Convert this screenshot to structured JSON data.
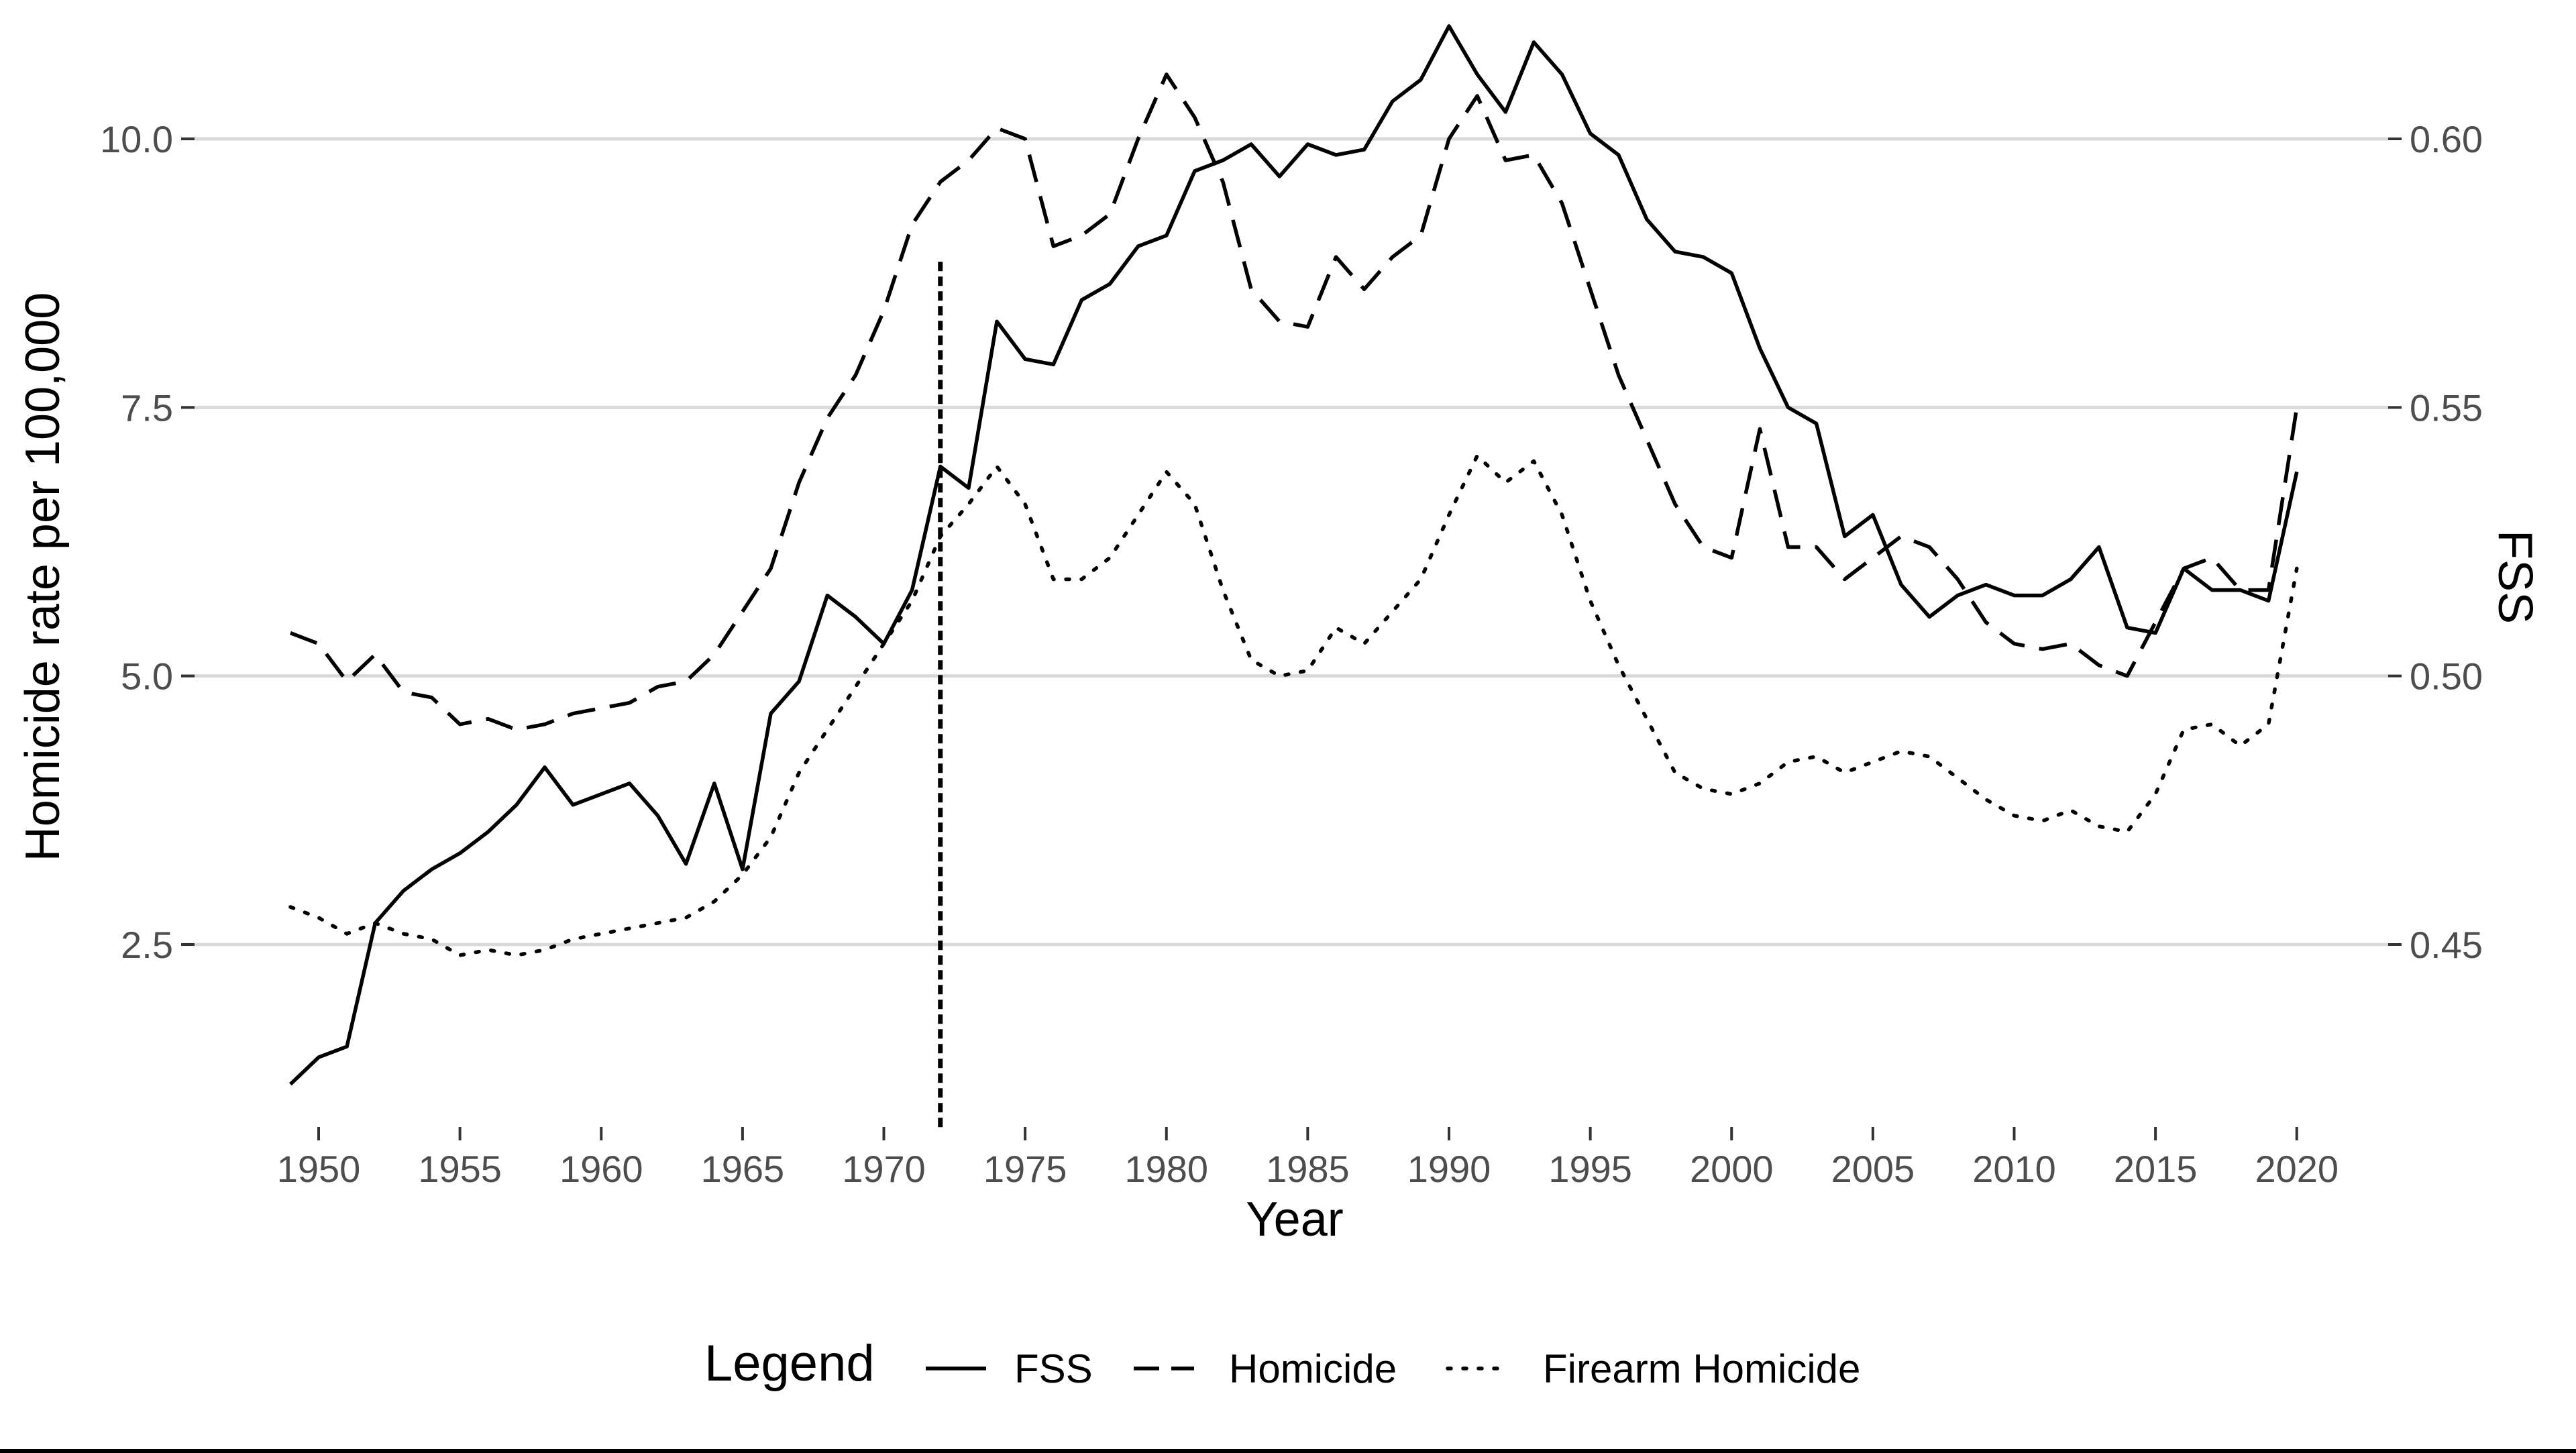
{
  "chart_data": {
    "type": "line",
    "xlabel": "Year",
    "ylabel": "Homicide rate per 100,000",
    "y2label": "FSS",
    "legend_title": "Legend",
    "legend_position": "bottom",
    "grid": "horizontal major",
    "xlim": [
      1949,
      2020
    ],
    "ylim": [
      0.8,
      10.6
    ],
    "y2lim": [
      0.42,
      0.616
    ],
    "xticks": [
      1950,
      1955,
      1960,
      1965,
      1970,
      1975,
      1980,
      1985,
      1990,
      1995,
      2000,
      2005,
      2010,
      2015,
      2020
    ],
    "xtick_labels": [
      "1950",
      "1955",
      "1960",
      "1965",
      "1970",
      "1975",
      "1980",
      "1985",
      "1990",
      "1995",
      "2000",
      "2005",
      "2010",
      "2015",
      "2020"
    ],
    "yticks": [
      2.5,
      5.0,
      7.5,
      10.0
    ],
    "ytick_labels": [
      "2.5",
      "5.0",
      "7.5",
      "10.0"
    ],
    "y2ticks": [
      0.45,
      0.5,
      0.55,
      0.6
    ],
    "y2tick_labels": [
      "0.45",
      "0.50",
      "0.55",
      "0.60"
    ],
    "vline": {
      "x": 1972,
      "y_from": 0.8,
      "y_to": 8.9,
      "style": "dashed"
    },
    "x": [
      1949,
      1950,
      1951,
      1952,
      1953,
      1954,
      1955,
      1956,
      1957,
      1958,
      1959,
      1960,
      1961,
      1962,
      1963,
      1964,
      1965,
      1966,
      1967,
      1968,
      1969,
      1970,
      1971,
      1972,
      1973,
      1974,
      1975,
      1976,
      1977,
      1978,
      1979,
      1980,
      1981,
      1982,
      1983,
      1984,
      1985,
      1986,
      1987,
      1988,
      1989,
      1990,
      1991,
      1992,
      1993,
      1994,
      1995,
      1996,
      1997,
      1998,
      1999,
      2000,
      2001,
      2002,
      2003,
      2004,
      2005,
      2006,
      2007,
      2008,
      2009,
      2010,
      2011,
      2012,
      2013,
      2014,
      2015,
      2016,
      2017,
      2018,
      2019,
      2020
    ],
    "series": [
      {
        "name": "FSS",
        "axis": "right",
        "dash": "solid",
        "values": [
          0.424,
          0.429,
          0.431,
          0.454,
          0.46,
          0.464,
          0.467,
          0.471,
          0.476,
          0.483,
          0.476,
          0.478,
          0.48,
          0.474,
          0.465,
          0.48,
          0.464,
          0.493,
          0.499,
          0.515,
          0.511,
          0.506,
          0.516,
          0.539,
          0.535,
          0.566,
          0.559,
          0.558,
          0.57,
          0.573,
          0.58,
          0.582,
          0.594,
          0.596,
          0.599,
          0.593,
          0.599,
          0.597,
          0.598,
          0.607,
          0.611,
          0.621,
          0.612,
          0.605,
          0.618,
          0.612,
          0.601,
          0.597,
          0.585,
          0.579,
          0.578,
          0.575,
          0.561,
          0.55,
          0.547,
          0.526,
          0.53,
          0.517,
          0.511,
          0.515,
          0.517,
          0.515,
          0.515,
          0.518,
          0.524,
          0.509,
          0.508,
          0.52,
          0.516,
          0.516,
          0.514,
          0.538
        ]
      },
      {
        "name": "Homicide",
        "axis": "left",
        "dash": "dashed",
        "values": [
          5.4,
          5.3,
          4.95,
          5.2,
          4.85,
          4.8,
          4.55,
          4.6,
          4.5,
          4.55,
          4.65,
          4.7,
          4.75,
          4.9,
          4.95,
          5.2,
          5.6,
          6.0,
          6.8,
          7.4,
          7.8,
          8.4,
          9.2,
          9.6,
          9.8,
          10.1,
          10.0,
          9.0,
          9.1,
          9.3,
          10.0,
          10.6,
          10.2,
          9.6,
          8.6,
          8.3,
          8.25,
          8.9,
          8.6,
          8.9,
          9.1,
          10.0,
          10.4,
          9.8,
          9.85,
          9.4,
          8.6,
          7.8,
          7.2,
          6.6,
          6.2,
          6.1,
          7.3,
          6.2,
          6.2,
          5.9,
          6.1,
          6.3,
          6.2,
          5.9,
          5.5,
          5.3,
          5.25,
          5.3,
          5.1,
          5.0,
          5.5,
          6.0,
          6.1,
          5.8,
          5.8,
          7.5
        ]
      },
      {
        "name": "Firearm Homicide",
        "axis": "left",
        "dash": "dotted",
        "values": [
          2.85,
          2.75,
          2.6,
          2.7,
          2.6,
          2.55,
          2.4,
          2.45,
          2.4,
          2.45,
          2.55,
          2.6,
          2.65,
          2.7,
          2.75,
          2.9,
          3.15,
          3.5,
          4.1,
          4.5,
          4.9,
          5.3,
          5.7,
          6.3,
          6.6,
          6.95,
          6.6,
          5.9,
          5.9,
          6.1,
          6.5,
          6.9,
          6.6,
          5.8,
          5.15,
          5.0,
          5.05,
          5.45,
          5.3,
          5.6,
          5.9,
          6.5,
          7.05,
          6.8,
          7.0,
          6.5,
          5.7,
          5.1,
          4.6,
          4.1,
          3.95,
          3.9,
          4.0,
          4.2,
          4.25,
          4.1,
          4.2,
          4.3,
          4.25,
          4.05,
          3.85,
          3.7,
          3.65,
          3.75,
          3.6,
          3.55,
          3.9,
          4.5,
          4.55,
          4.35,
          4.55,
          6.0
        ]
      }
    ]
  }
}
